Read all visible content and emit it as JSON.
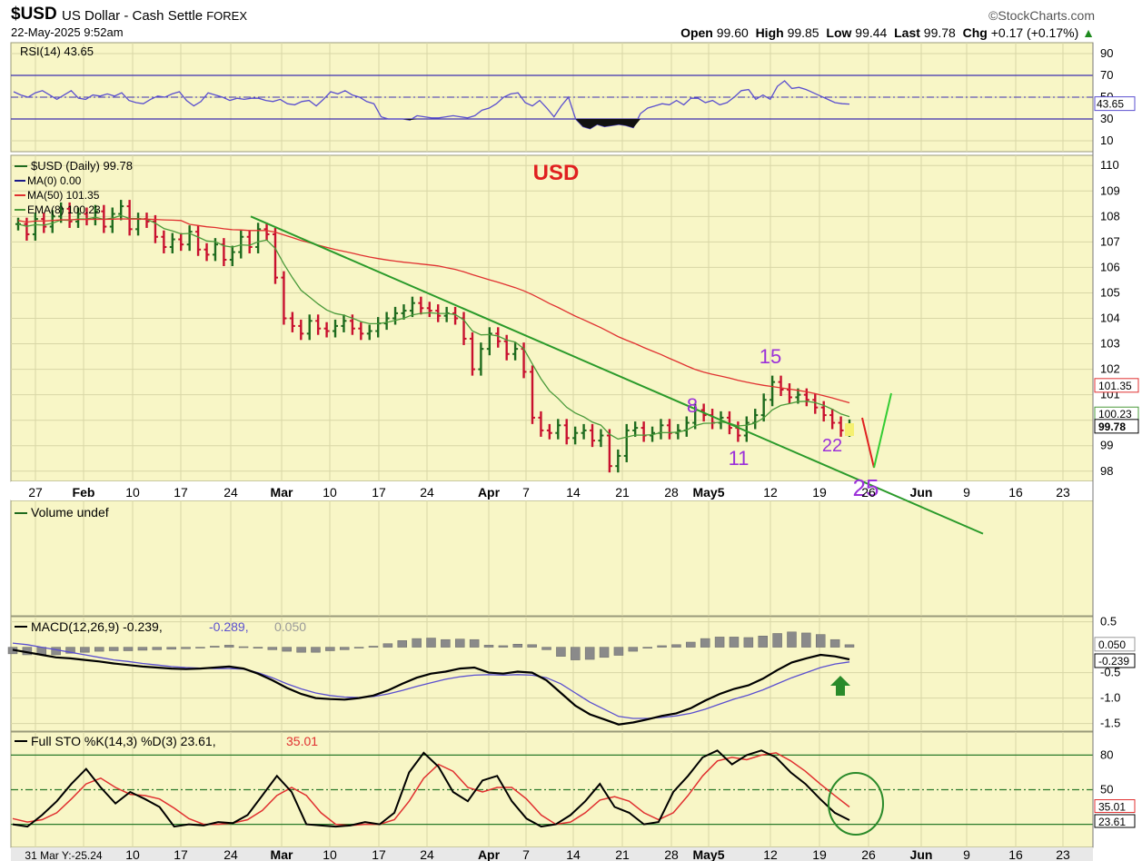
{
  "header": {
    "symbol": "$USD",
    "description": "US Dollar - Cash Settle",
    "exchange": "FOREX",
    "logo": "©StockCharts.com",
    "datetime": "22-May-2025 9:52am",
    "open_label": "Open",
    "open": "99.60",
    "high_label": "High",
    "high": "99.85",
    "low_label": "Low",
    "low": "99.44",
    "last_label": "Last",
    "last": "99.78",
    "chg_label": "Chg",
    "chg": "+0.17 (+0.17%)"
  },
  "colors": {
    "panel_bg": "#f8f6c6",
    "grid": "#d8d6a6",
    "up": "#1e6b1e",
    "down": "#c8102e",
    "ma50": "#e03030",
    "ema8": "#4a9a3a",
    "rsi": "#5a4fcf",
    "macd": "#000000",
    "signal": "#5a4fcf",
    "hist": "#8a8a8a",
    "trendline": "#2a9a2a",
    "annot_purple": "#9b30d9",
    "usd_red": "#e02020"
  },
  "chart_data": [
    {
      "type": "line",
      "name": "RSI panel",
      "legend": "RSI(14) 43.65",
      "ticks": [
        "90",
        "70",
        "50",
        "30",
        "10"
      ],
      "levels": [
        70,
        50,
        30
      ],
      "last_label": "43.65",
      "values": [
        55,
        52,
        50,
        54,
        56,
        52,
        48,
        52,
        56,
        49,
        48,
        52,
        51,
        53,
        51,
        54,
        47,
        45,
        44,
        48,
        51,
        50,
        53,
        55,
        47,
        42,
        46,
        54,
        52,
        50,
        47,
        49,
        48,
        49,
        49,
        47,
        46,
        48,
        44,
        43,
        46,
        47,
        42,
        48,
        55,
        53,
        56,
        52,
        50,
        46,
        44,
        32,
        30,
        30,
        30,
        29,
        33,
        32,
        31,
        31,
        32,
        33,
        32,
        31,
        33,
        38,
        40,
        44,
        50,
        53,
        54,
        45,
        42,
        47,
        40,
        32,
        42,
        50,
        30,
        23,
        21,
        25,
        23,
        24,
        25,
        24,
        22,
        35,
        40,
        42,
        44,
        43,
        47,
        43,
        49,
        49,
        45,
        47,
        43,
        45,
        50,
        56,
        57,
        48,
        52,
        48,
        60,
        65,
        58,
        59,
        57,
        54,
        51,
        48,
        45,
        44,
        43.65
      ],
      "ylim": [
        0,
        100
      ]
    },
    {
      "type": "candlestick",
      "name": "Price panel",
      "title": "USD",
      "legend": [
        "$USD (Daily) 99.78",
        "MA(0) 0.00",
        "MA(50) 101.35",
        "EMA(8) 100.23"
      ],
      "y_ticks": [
        "110",
        "109",
        "108",
        "107",
        "106",
        "105",
        "104",
        "103",
        "102",
        "101",
        "100",
        "99",
        "98"
      ],
      "x_ticks": [
        "27",
        "Feb",
        "10",
        "17",
        "24",
        "Mar",
        "10",
        "17",
        "24",
        "Apr",
        "7",
        "14",
        "21",
        "28",
        "May5",
        "12",
        "19",
        "26",
        "Jun",
        "9",
        "16",
        "23"
      ],
      "right_labels": {
        "ma50": "101.35",
        "ema8": "100.23",
        "last": "99.78"
      },
      "ylim": [
        97.6,
        110.4
      ],
      "closes": [
        107.7,
        107.3,
        107.9,
        107.6,
        108.0,
        108.3,
        107.8,
        108.1,
        107.9,
        108.2,
        107.6,
        108.1,
        108.4,
        107.5,
        107.9,
        107.8,
        107.2,
        106.8,
        107.1,
        106.9,
        107.4,
        106.7,
        106.5,
        106.9,
        106.3,
        106.6,
        107.2,
        106.8,
        107.5,
        107.3,
        105.6,
        104.0,
        103.7,
        103.4,
        103.9,
        103.6,
        103.5,
        103.7,
        103.9,
        103.6,
        103.4,
        103.5,
        103.8,
        104.0,
        104.2,
        104.3,
        104.6,
        104.4,
        104.3,
        104.1,
        104.2,
        104.0,
        103.2,
        102.0,
        102.8,
        103.4,
        103.1,
        102.6,
        102.8,
        101.9,
        100.1,
        99.6,
        99.5,
        99.8,
        99.3,
        99.5,
        99.6,
        99.2,
        99.4,
        98.2,
        98.6,
        99.6,
        99.7,
        99.4,
        99.5,
        99.8,
        99.5,
        99.6,
        99.9,
        100.4,
        100.2,
        99.9,
        100.1,
        99.7,
        99.4,
        99.9,
        100.2,
        100.8,
        101.5,
        101.2,
        100.9,
        101.0,
        100.8,
        100.5,
        100.2,
        99.9,
        99.6,
        99.78
      ],
      "annotations": [
        "15",
        "8",
        "11",
        "22",
        "25"
      ],
      "trendline": {
        "from": [
          "Feb 27",
          108.0
        ],
        "to": [
          "Jun 4",
          96.9
        ]
      }
    },
    {
      "type": "bar",
      "name": "Volume panel",
      "legend": "Volume undef"
    },
    {
      "type": "line",
      "name": "MACD panel",
      "legend": {
        "main": "MACD(12,26,9) -0.239,",
        "signal": "-0.289,",
        "hist": "0.050"
      },
      "y_ticks": [
        "0.5",
        "-0.5",
        "-1.0",
        "-1.5"
      ],
      "right_labels": {
        "hist": "0.050",
        "macd": "-0.239"
      },
      "ylim": [
        -1.65,
        0.6
      ],
      "macd": [
        -0.05,
        -0.1,
        -0.15,
        -0.2,
        -0.22,
        -0.25,
        -0.28,
        -0.32,
        -0.35,
        -0.38,
        -0.4,
        -0.42,
        -0.43,
        -0.42,
        -0.4,
        -0.38,
        -0.42,
        -0.52,
        -0.65,
        -0.8,
        -0.92,
        -1.0,
        -1.02,
        -1.03,
        -1.0,
        -0.95,
        -0.85,
        -0.72,
        -0.6,
        -0.52,
        -0.48,
        -0.42,
        -0.4,
        -0.5,
        -0.52,
        -0.48,
        -0.5,
        -0.65,
        -0.9,
        -1.15,
        -1.32,
        -1.42,
        -1.52,
        -1.48,
        -1.42,
        -1.35,
        -1.3,
        -1.2,
        -1.05,
        -0.92,
        -0.82,
        -0.75,
        -0.62,
        -0.45,
        -0.3,
        -0.22,
        -0.15,
        -0.18,
        -0.24
      ],
      "signal": [
        0.08,
        0.05,
        0.0,
        -0.05,
        -0.1,
        -0.15,
        -0.2,
        -0.25,
        -0.28,
        -0.32,
        -0.35,
        -0.38,
        -0.4,
        -0.41,
        -0.42,
        -0.42,
        -0.43,
        -0.5,
        -0.6,
        -0.72,
        -0.82,
        -0.9,
        -0.95,
        -0.98,
        -0.99,
        -0.97,
        -0.92,
        -0.85,
        -0.77,
        -0.7,
        -0.63,
        -0.58,
        -0.55,
        -0.54,
        -0.55,
        -0.54,
        -0.55,
        -0.6,
        -0.72,
        -0.9,
        -1.08,
        -1.22,
        -1.36,
        -1.4,
        -1.4,
        -1.38,
        -1.35,
        -1.3,
        -1.22,
        -1.12,
        -1.02,
        -0.94,
        -0.84,
        -0.72,
        -0.6,
        -0.5,
        -0.4,
        -0.33,
        -0.289
      ]
    },
    {
      "type": "line",
      "name": "Full Stochastic panel",
      "legend": {
        "main": "Full STO %K(14,3) %D(3) 23.61,",
        "d": "35.01"
      },
      "y_ticks": [
        "80",
        "50"
      ],
      "levels": [
        80,
        50,
        20
      ],
      "right_labels": {
        "d": "35.01",
        "k": "23.61"
      },
      "ylim": [
        0,
        100
      ],
      "k": [
        20,
        18,
        28,
        40,
        55,
        68,
        52,
        38,
        48,
        42,
        35,
        18,
        20,
        19,
        22,
        21,
        28,
        45,
        62,
        48,
        20,
        19,
        18,
        19,
        22,
        20,
        30,
        65,
        82,
        70,
        48,
        40,
        58,
        62,
        40,
        25,
        18,
        20,
        28,
        40,
        55,
        35,
        30,
        20,
        22,
        48,
        62,
        78,
        84,
        72,
        80,
        84,
        78,
        65,
        55,
        42,
        30,
        23.61
      ],
      "d": [
        25,
        22,
        24,
        30,
        42,
        55,
        60,
        52,
        46,
        45,
        42,
        34,
        25,
        20,
        20,
        21,
        24,
        32,
        45,
        52,
        45,
        30,
        20,
        19,
        20,
        20,
        24,
        40,
        60,
        72,
        66,
        52,
        48,
        52,
        52,
        42,
        28,
        20,
        22,
        30,
        41,
        44,
        40,
        30,
        24,
        30,
        45,
        62,
        75,
        78,
        76,
        80,
        82,
        75,
        66,
        55,
        45,
        35.01
      ],
      "x_ticks": [
        "31 Mar Y:-25.24",
        "10",
        "17",
        "24",
        "Mar",
        "10",
        "17",
        "24",
        "Apr",
        "7",
        "14",
        "21",
        "28",
        "May5",
        "12",
        "19",
        "26",
        "Jun",
        "9",
        "16",
        "23"
      ]
    }
  ]
}
